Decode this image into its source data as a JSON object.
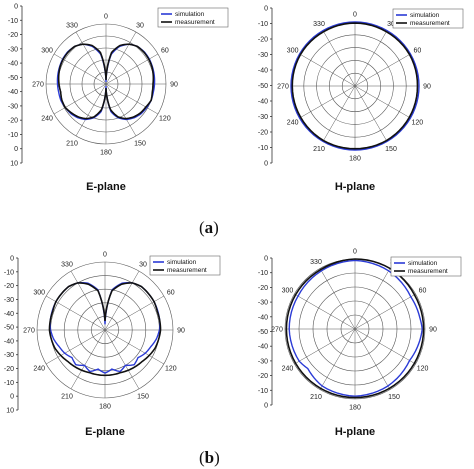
{
  "panel_labels": {
    "a": "a",
    "b": "b"
  },
  "colors": {
    "simulation": "#2b3bd6",
    "measurement": "#111111",
    "grid": "#555555"
  },
  "chart_data": [
    {
      "id": "a-e",
      "type": "polar",
      "title": "E-plane",
      "angle_ticks": [
        "0",
        "30",
        "60",
        "90",
        "120",
        "150",
        "180",
        "210",
        "240",
        "270",
        "300",
        "330"
      ],
      "radial_ticks": [
        "0",
        "-10",
        "-20",
        "-30",
        "-40",
        "-50",
        "-40",
        "-30",
        "-20",
        "-10",
        "0",
        "10"
      ],
      "radial_range": [
        -50,
        10
      ],
      "grid": true,
      "legend": {
        "position": "top-right",
        "entries": [
          "simulation",
          "measurement"
        ]
      },
      "series": [
        {
          "name": "simulation",
          "points": [
            [
              0,
              -48
            ],
            [
              10,
              -20
            ],
            [
              20,
              -10
            ],
            [
              30,
              -4
            ],
            [
              40,
              -1
            ],
            [
              50,
              0
            ],
            [
              60,
              0
            ],
            [
              70,
              -0.5
            ],
            [
              80,
              -1
            ],
            [
              90,
              -1.5
            ],
            [
              100,
              -2
            ],
            [
              110,
              -2
            ],
            [
              120,
              -3
            ],
            [
              130,
              -4
            ],
            [
              140,
              -6
            ],
            [
              150,
              -9
            ],
            [
              160,
              -14
            ],
            [
              170,
              -22
            ],
            [
              180,
              -48
            ],
            [
              190,
              -22
            ],
            [
              200,
              -14
            ],
            [
              210,
              -9
            ],
            [
              220,
              -6
            ],
            [
              230,
              -4
            ],
            [
              240,
              -3
            ],
            [
              250,
              -2
            ],
            [
              260,
              -2
            ],
            [
              270,
              -1.5
            ],
            [
              280,
              -1
            ],
            [
              290,
              -0.5
            ],
            [
              300,
              0
            ],
            [
              310,
              0
            ],
            [
              320,
              -1
            ],
            [
              330,
              -4
            ],
            [
              340,
              -10
            ],
            [
              350,
              -20
            ]
          ]
        },
        {
          "name": "measurement",
          "points": [
            [
              0,
              -46
            ],
            [
              10,
              -18
            ],
            [
              20,
              -9
            ],
            [
              30,
              -4
            ],
            [
              40,
              -1
            ],
            [
              50,
              -0.5
            ],
            [
              60,
              -0.5
            ],
            [
              70,
              -1
            ],
            [
              80,
              -2
            ],
            [
              90,
              -3
            ],
            [
              100,
              -3
            ],
            [
              110,
              -2
            ],
            [
              120,
              -4
            ],
            [
              130,
              -5
            ],
            [
              140,
              -7
            ],
            [
              150,
              -10
            ],
            [
              160,
              -15
            ],
            [
              170,
              -24
            ],
            [
              180,
              -46
            ],
            [
              190,
              -24
            ],
            [
              200,
              -15
            ],
            [
              210,
              -10
            ],
            [
              220,
              -7
            ],
            [
              230,
              -5
            ],
            [
              240,
              -3
            ],
            [
              250,
              -3
            ],
            [
              260,
              -4
            ],
            [
              270,
              -3
            ],
            [
              280,
              -2
            ],
            [
              290,
              -1
            ],
            [
              300,
              -0.5
            ],
            [
              310,
              -0.5
            ],
            [
              320,
              -1
            ],
            [
              330,
              -4
            ],
            [
              340,
              -9
            ],
            [
              350,
              -18
            ]
          ]
        }
      ]
    },
    {
      "id": "a-h",
      "type": "polar",
      "title": "H-plane",
      "angle_ticks": [
        "0",
        "30",
        "60",
        "90",
        "120",
        "150",
        "180",
        "210",
        "240",
        "270",
        "300",
        "330"
      ],
      "radial_ticks": [
        "0",
        "-10",
        "-20",
        "-30",
        "-40",
        "-50",
        "-40",
        "-30",
        "-20",
        "-10",
        "0"
      ],
      "radial_range": [
        -50,
        0
      ],
      "grid": true,
      "legend": {
        "position": "top-right",
        "entries": [
          "simulation",
          "measurement"
        ]
      },
      "series": [
        {
          "name": "simulation",
          "points": [
            [
              0,
              0
            ],
            [
              30,
              0
            ],
            [
              60,
              0
            ],
            [
              90,
              0
            ],
            [
              120,
              0
            ],
            [
              150,
              0
            ],
            [
              180,
              0
            ],
            [
              210,
              0
            ],
            [
              240,
              0
            ],
            [
              270,
              0
            ],
            [
              300,
              0
            ],
            [
              330,
              0
            ]
          ]
        },
        {
          "name": "measurement",
          "points": [
            [
              0,
              -0.8
            ],
            [
              30,
              -1
            ],
            [
              60,
              -0.8
            ],
            [
              90,
              -1.2
            ],
            [
              120,
              -1
            ],
            [
              150,
              -0.8
            ],
            [
              180,
              -1
            ],
            [
              210,
              -0.8
            ],
            [
              240,
              -1
            ],
            [
              270,
              -1
            ],
            [
              300,
              -0.8
            ],
            [
              330,
              -1
            ]
          ]
        }
      ]
    },
    {
      "id": "b-e",
      "type": "polar",
      "title": "E-plane",
      "angle_ticks": [
        "0",
        "30",
        "60",
        "90",
        "120",
        "150",
        "180",
        "210",
        "240",
        "270",
        "300",
        "330"
      ],
      "radial_ticks": [
        "0",
        "-10",
        "-20",
        "-30",
        "-40",
        "-50",
        "-40",
        "-30",
        "-20",
        "-10",
        "0",
        "10"
      ],
      "radial_range": [
        -50,
        10
      ],
      "grid": true,
      "legend": {
        "position": "top-right",
        "entries": [
          "simulation",
          "measurement"
        ]
      },
      "series": [
        {
          "name": "simulation",
          "points": [
            [
              0,
              -45
            ],
            [
              10,
              -14
            ],
            [
              20,
              -6
            ],
            [
              30,
              -2
            ],
            [
              40,
              0
            ],
            [
              50,
              0
            ],
            [
              60,
              0
            ],
            [
              70,
              -0.5
            ],
            [
              80,
              -1
            ],
            [
              90,
              -2
            ],
            [
              100,
              -4
            ],
            [
              110,
              -7
            ],
            [
              120,
              -9
            ],
            [
              130,
              -12
            ],
            [
              140,
              -10
            ],
            [
              150,
              -14
            ],
            [
              160,
              -11
            ],
            [
              170,
              -15
            ],
            [
              180,
              -12
            ],
            [
              190,
              -15
            ],
            [
              200,
              -11
            ],
            [
              210,
              -14
            ],
            [
              220,
              -10
            ],
            [
              230,
              -12
            ],
            [
              240,
              -9
            ],
            [
              250,
              -7
            ],
            [
              260,
              -4
            ],
            [
              270,
              -2
            ],
            [
              280,
              -1
            ],
            [
              290,
              -0.5
            ],
            [
              300,
              0
            ],
            [
              310,
              0
            ],
            [
              320,
              0
            ],
            [
              330,
              -2
            ],
            [
              340,
              -6
            ],
            [
              350,
              -14
            ]
          ]
        },
        {
          "name": "measurement",
          "points": [
            [
              0,
              -42
            ],
            [
              10,
              -15
            ],
            [
              20,
              -7
            ],
            [
              30,
              -2
            ],
            [
              40,
              0
            ],
            [
              50,
              0
            ],
            [
              60,
              0
            ],
            [
              70,
              -1
            ],
            [
              80,
              -1
            ],
            [
              90,
              -1
            ],
            [
              100,
              -2
            ],
            [
              110,
              -3
            ],
            [
              120,
              -5
            ],
            [
              130,
              -7
            ],
            [
              140,
              -8
            ],
            [
              150,
              -9
            ],
            [
              160,
              -10
            ],
            [
              170,
              -10
            ],
            [
              180,
              -10
            ],
            [
              190,
              -10
            ],
            [
              200,
              -10
            ],
            [
              210,
              -9
            ],
            [
              220,
              -8
            ],
            [
              230,
              -7
            ],
            [
              240,
              -5
            ],
            [
              250,
              -3
            ],
            [
              260,
              -2
            ],
            [
              270,
              -1
            ],
            [
              280,
              -1
            ],
            [
              290,
              -1
            ],
            [
              300,
              0
            ],
            [
              310,
              0
            ],
            [
              320,
              0
            ],
            [
              330,
              -2
            ],
            [
              340,
              -7
            ],
            [
              350,
              -15
            ]
          ]
        }
      ]
    },
    {
      "id": "b-h",
      "type": "polar",
      "title": "H-plane",
      "angle_ticks": [
        "0",
        "30",
        "60",
        "90",
        "120",
        "150",
        "180",
        "210",
        "240",
        "270",
        "300",
        "330"
      ],
      "radial_ticks": [
        "0",
        "-10",
        "-20",
        "-30",
        "-40",
        "-50",
        "-40",
        "-30",
        "-20",
        "-10",
        "0"
      ],
      "radial_range": [
        -50,
        0
      ],
      "grid": true,
      "legend": {
        "position": "top-right",
        "entries": [
          "simulation",
          "measurement"
        ]
      },
      "series": [
        {
          "name": "simulation",
          "points": [
            [
              0,
              -1
            ],
            [
              30,
              -2
            ],
            [
              60,
              -4
            ],
            [
              80,
              -3
            ],
            [
              90,
              -2
            ],
            [
              100,
              -3
            ],
            [
              120,
              -5
            ],
            [
              150,
              -3
            ],
            [
              180,
              -2
            ],
            [
              210,
              -3
            ],
            [
              230,
              -6
            ],
            [
              240,
              -4
            ],
            [
              270,
              -3
            ],
            [
              300,
              -3
            ],
            [
              330,
              -2
            ]
          ]
        },
        {
          "name": "measurement",
          "points": [
            [
              0,
              0
            ],
            [
              30,
              0
            ],
            [
              60,
              -1
            ],
            [
              90,
              -1
            ],
            [
              120,
              -1
            ],
            [
              150,
              -1
            ],
            [
              180,
              -1
            ],
            [
              210,
              -1
            ],
            [
              240,
              -1
            ],
            [
              270,
              -1
            ],
            [
              300,
              -1
            ],
            [
              330,
              -1
            ]
          ]
        }
      ]
    }
  ]
}
